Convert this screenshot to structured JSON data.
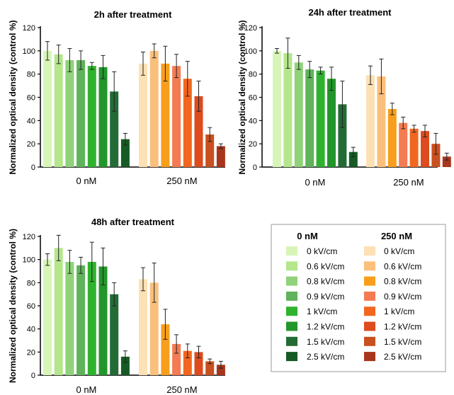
{
  "colors": {
    "zero": [
      "#d8f5b8",
      "#b4e68c",
      "#8fd27a",
      "#5fb35a",
      "#2fb32f",
      "#23962b",
      "#236b35",
      "#175a24"
    ],
    "t250": [
      "#fde1b4",
      "#fbbf7c",
      "#f89e1b",
      "#f47b52",
      "#f2661e",
      "#dd4b1e",
      "#c9501f",
      "#a8361c"
    ]
  },
  "legend": {
    "group_headers": [
      "0 nM",
      "250 nM"
    ],
    "labels": [
      "0 kV/cm",
      "0.6 kV/cm",
      "0.8 kV/cm",
      "0.9 kV/cm",
      "1 kV/cm",
      "1.2 kV/cm",
      "1.5 kV/cm",
      "2.5 kV/cm"
    ]
  },
  "chart_data": [
    {
      "type": "bar",
      "title": "2h after treatment",
      "ylabel": "Normalized optical density (control %)",
      "ylim": [
        0,
        120
      ],
      "yticks": [
        0,
        20,
        40,
        60,
        80,
        100,
        120
      ],
      "categories": [
        "0 nM",
        "250 nM"
      ],
      "series_labels": [
        "0 kV/cm",
        "0.6 kV/cm",
        "0.8 kV/cm",
        "0.9 kV/cm",
        "1 kV/cm",
        "1.2 kV/cm",
        "1.5 kV/cm",
        "2.5 kV/cm"
      ],
      "groups": [
        {
          "category": "0 nM",
          "values": [
            100,
            97,
            92,
            92,
            87,
            86,
            65,
            24
          ],
          "errors": [
            8,
            8,
            10,
            8,
            3,
            10,
            17,
            5
          ]
        },
        {
          "category": "250 nM",
          "values": [
            89,
            100,
            89,
            87,
            76,
            61,
            28,
            18
          ],
          "errors": [
            10,
            6,
            15,
            10,
            15,
            13,
            6,
            2
          ]
        }
      ]
    },
    {
      "type": "bar",
      "title": "24h after treatment",
      "ylabel": "Normalized optical density (control %)",
      "ylim": [
        0,
        120
      ],
      "yticks": [
        0,
        20,
        40,
        60,
        80,
        100,
        120
      ],
      "categories": [
        "0 nM",
        "250 nM"
      ],
      "series_labels": [
        "0 kV/cm",
        "0.6 kV/cm",
        "0.8 kV/cm",
        "0.9 kV/cm",
        "1 kV/cm",
        "1.2 kV/cm",
        "1.5 kV/cm",
        "2.5 kV/cm"
      ],
      "groups": [
        {
          "category": "0 nM",
          "values": [
            100,
            98,
            90,
            84,
            83,
            76,
            54,
            13
          ],
          "errors": [
            2,
            13,
            6,
            7,
            3,
            10,
            20,
            4
          ]
        },
        {
          "category": "250 nM",
          "values": [
            79,
            78,
            50,
            38,
            33,
            31,
            20,
            9
          ],
          "errors": [
            8,
            15,
            5,
            5,
            3,
            5,
            9,
            3
          ]
        }
      ]
    },
    {
      "type": "bar",
      "title": "48h after treatment",
      "ylabel": "Normalized optical density (control %)",
      "ylim": [
        0,
        120
      ],
      "yticks": [
        0,
        20,
        40,
        60,
        80,
        100,
        120
      ],
      "categories": [
        "0 nM",
        "250 nM"
      ],
      "series_labels": [
        "0 kV/cm",
        "0.6 kV/cm",
        "0.8 kV/cm",
        "0.9 kV/cm",
        "1 kV/cm",
        "1.2 kV/cm",
        "1.5 kV/cm",
        "2.5 kV/cm"
      ],
      "groups": [
        {
          "category": "0 nM",
          "values": [
            100,
            110,
            98,
            95,
            98,
            94,
            70,
            16
          ],
          "errors": [
            5,
            11,
            10,
            7,
            17,
            16,
            10,
            5
          ]
        },
        {
          "category": "250 nM",
          "values": [
            83,
            80,
            44,
            27,
            21,
            20,
            12,
            9
          ],
          "errors": [
            10,
            17,
            13,
            8,
            6,
            5,
            2,
            3
          ]
        }
      ]
    }
  ]
}
